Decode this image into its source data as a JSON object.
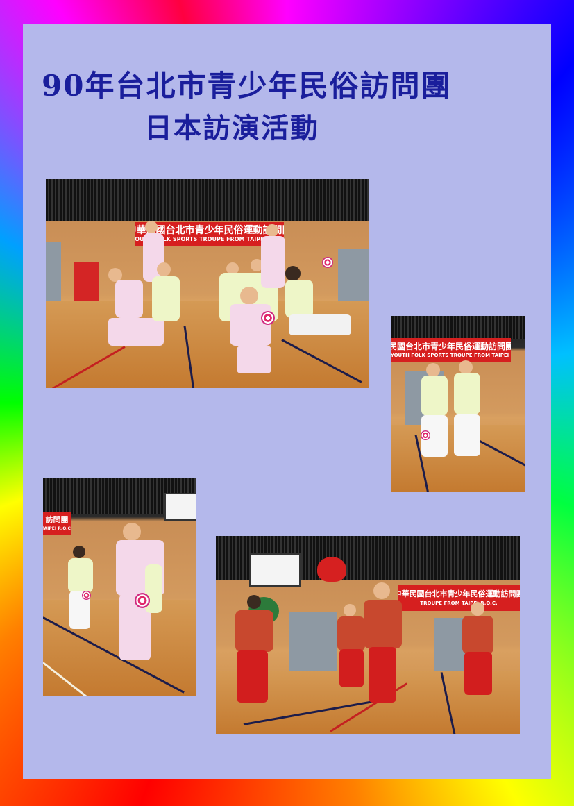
{
  "title": {
    "line1": "90年台北市青少年民俗訪問團",
    "line2": "日本訪演活動"
  },
  "photos": [
    {
      "name": "group-diabolo-performance",
      "banner_zh": "中華民國台北市青少年民俗運動訪問團",
      "banner_en": "YOUTH FOLK SPORTS TROUPE FROM TAIPEI R.O.C."
    },
    {
      "name": "two-boys-diabolo",
      "banner_zh": "民國台北市青少年民俗運動訪問團",
      "banner_en": "NESE YOUTH FOLK SPORTS TROUPE FROM TAIPEI R.O.C."
    },
    {
      "name": "girl-diabolo-solo",
      "banner_zh": "訪問團",
      "banner_en": "TAIPEI R.O.C."
    },
    {
      "name": "red-costume-dance",
      "banner_zh": "中華民國台北市青少年民俗運動訪問團",
      "banner_en": "TROUPE FROM TAIPEI R.O.C."
    }
  ],
  "colors": {
    "panel": "#b4b8eb",
    "title": "#1a1e9c",
    "banner": "#d61f1f"
  }
}
